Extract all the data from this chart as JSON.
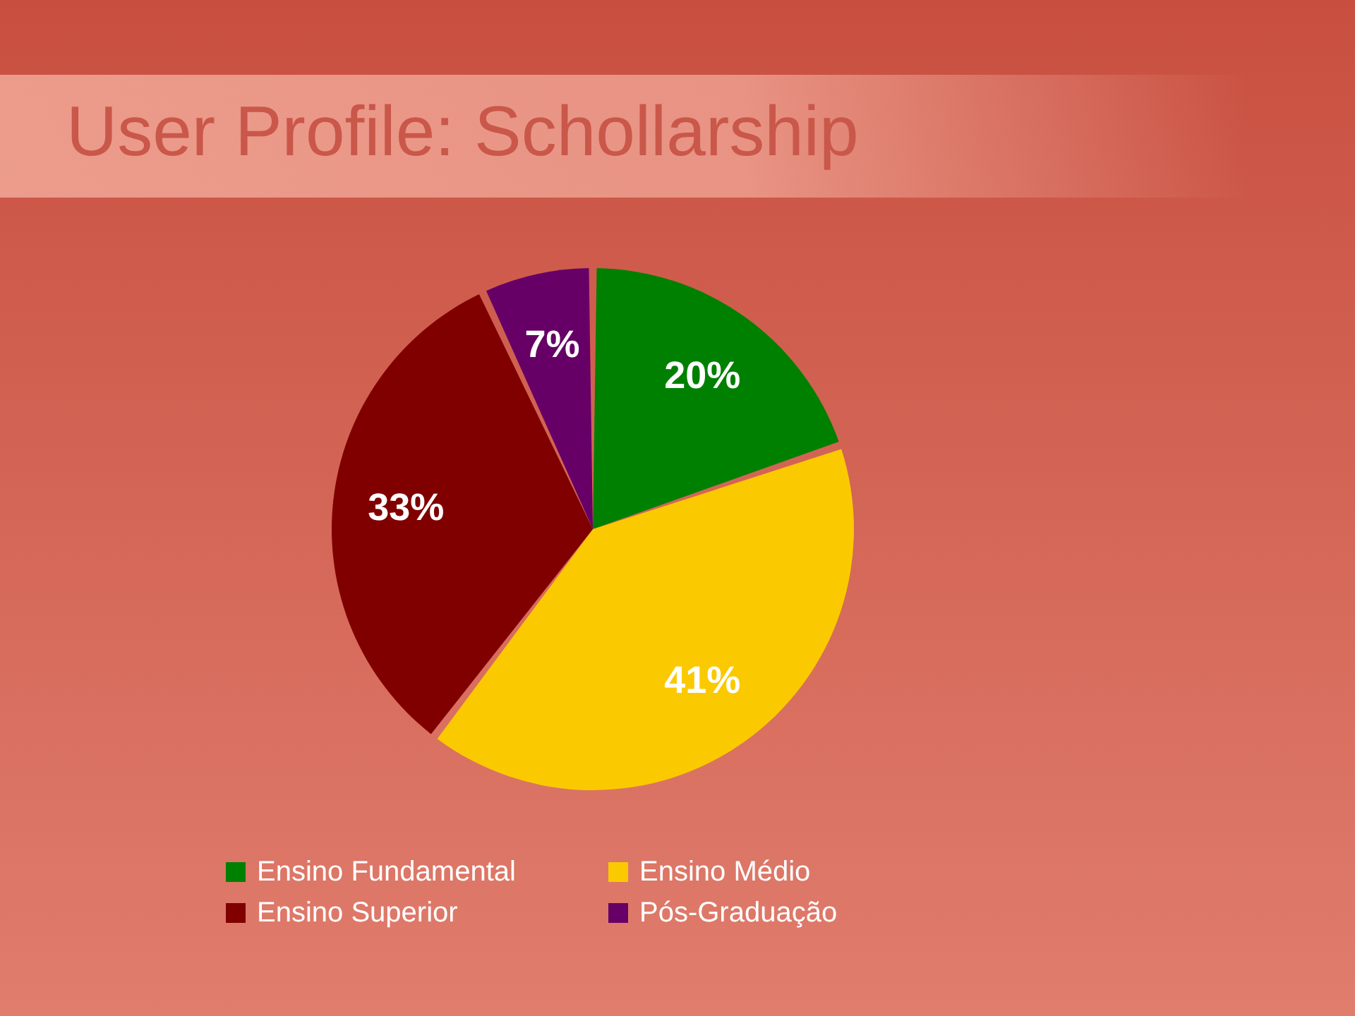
{
  "chart_data": {
    "type": "pie",
    "title": "User Profile: Schollarship",
    "categories": [
      "Ensino Fundamental",
      "Ensino Médio",
      "Ensino Superior",
      "Pós-Graduação"
    ],
    "values": [
      20,
      41,
      33,
      7
    ],
    "colors": [
      "#008000",
      "#fbc900",
      "#800000",
      "#660066"
    ],
    "value_labels": [
      "20%",
      "41%",
      "33%",
      "7%"
    ],
    "legend": "bottom"
  }
}
